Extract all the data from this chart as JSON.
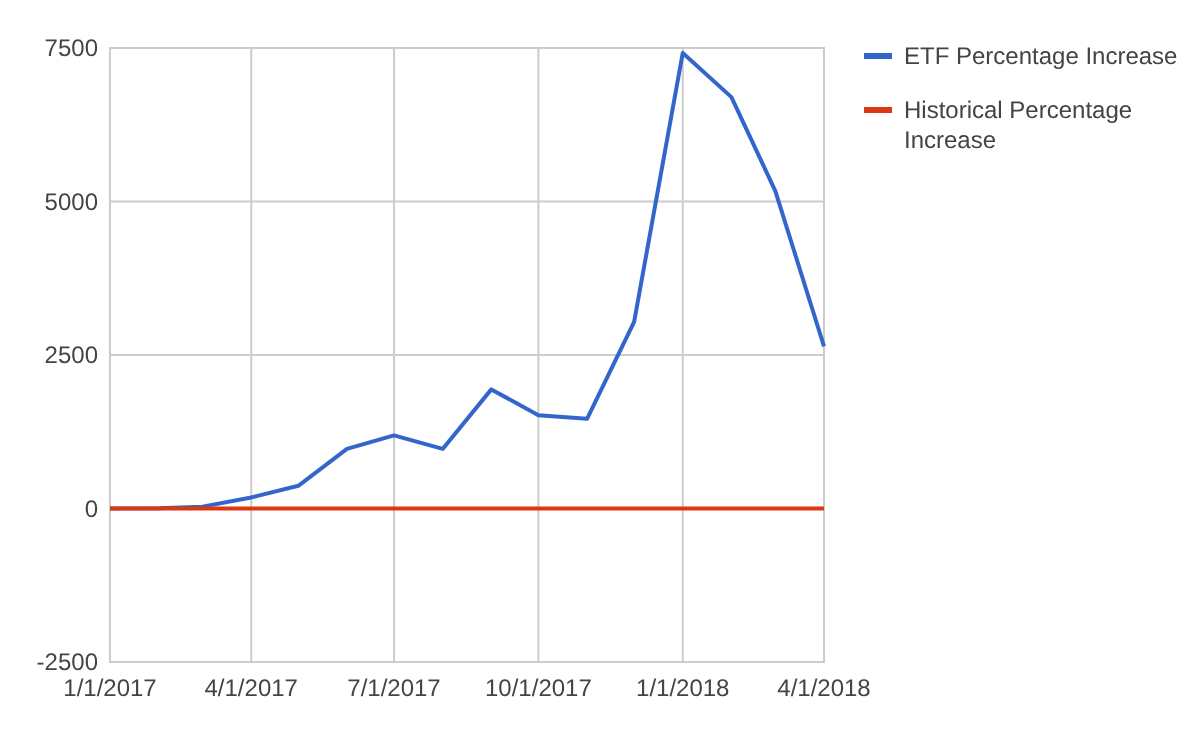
{
  "chart_data": {
    "type": "line",
    "x": [
      "2017-01",
      "2017-02",
      "2017-03",
      "2017-04",
      "2017-05",
      "2017-06",
      "2017-07",
      "2017-08",
      "2017-09",
      "2017-10",
      "2017-11",
      "2017-12",
      "2018-01",
      "2018-02",
      "2018-03",
      "2018-04"
    ],
    "series": [
      {
        "name": "ETF Percentage Increase",
        "color": "#3366cc",
        "values": [
          0,
          5,
          30,
          180,
          370,
          970,
          1190,
          970,
          1940,
          1520,
          1460,
          3040,
          7420,
          6700,
          5170,
          2640
        ]
      },
      {
        "name": "Historical Percentage Increase",
        "color": "#dc3912",
        "values": [
          0,
          0,
          0,
          0,
          0,
          0,
          0,
          0,
          0,
          0,
          0,
          0,
          0,
          0,
          0,
          0
        ]
      }
    ],
    "xlim": [
      "2017-01",
      "2018-04"
    ],
    "xticks": [
      {
        "value": "2017-01",
        "label": "1/1/2017"
      },
      {
        "value": "2017-04",
        "label": "4/1/2017"
      },
      {
        "value": "2017-07",
        "label": "7/1/2017"
      },
      {
        "value": "2017-10",
        "label": "10/1/2017"
      },
      {
        "value": "2018-01",
        "label": "1/1/2018"
      },
      {
        "value": "2018-04",
        "label": "4/1/2018"
      }
    ],
    "ylim": [
      -2500,
      7500
    ],
    "yticks": [
      -2500,
      0,
      2500,
      5000,
      7500
    ],
    "grid": true,
    "legend": "top right",
    "marker": "none",
    "line_style": "solid"
  }
}
